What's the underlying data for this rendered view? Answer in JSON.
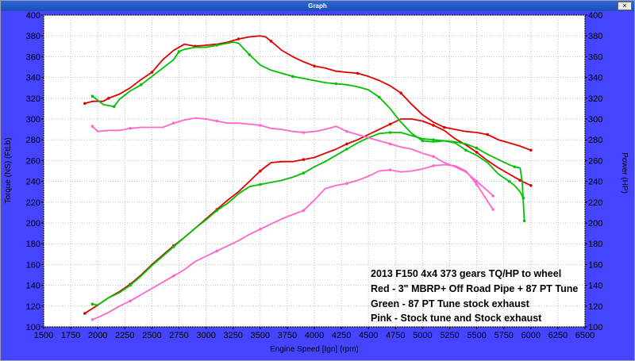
{
  "window": {
    "title": "Graph",
    "close_label": "×"
  },
  "chart_data": {
    "type": "line",
    "xlabel": "Engine Speed [Ign] (rpm)",
    "ylabel_left": "Torque (NS) (FtLb)",
    "ylabel_right": "Power (HP)",
    "xlim": [
      1500,
      6500
    ],
    "ylim": [
      100,
      400
    ],
    "x_ticks": [
      1500,
      1750,
      2000,
      2250,
      2500,
      2750,
      3000,
      3250,
      3500,
      3750,
      4000,
      4250,
      4500,
      4750,
      5000,
      5250,
      5500,
      5750,
      6000,
      6250,
      6500
    ],
    "y_ticks": [
      100,
      120,
      140,
      160,
      180,
      200,
      220,
      240,
      260,
      280,
      300,
      320,
      340,
      360,
      380,
      400
    ],
    "grid": true,
    "annotation": [
      "2013 F150 4x4 373 gears  TQ/HP to wheel",
      "Red - 3\" MBRP+ Off Road Pipe + 87 PT Tune",
      "Green - 87 PT Tune stock exhaust",
      "Pink - Stock tune and Stock exhaust"
    ],
    "series": [
      {
        "color": "#e00000",
        "kind": "torque",
        "x": [
          1880,
          1950,
          2000,
          2050,
          2100,
          2200,
          2300,
          2400,
          2500,
          2600,
          2700,
          2800,
          2900,
          3000,
          3100,
          3200,
          3300,
          3400,
          3500,
          3550,
          3600,
          3700,
          3800,
          3900,
          4000,
          4100,
          4200,
          4300,
          4400,
          4500,
          4600,
          4700,
          4800,
          4900,
          5000,
          5100,
          5200,
          5300,
          5400,
          5500,
          5600,
          5700,
          5800,
          5900,
          6000
        ],
        "y": [
          315,
          317,
          317,
          317,
          320,
          324,
          330,
          338,
          345,
          357,
          366,
          372,
          370,
          371,
          372,
          374,
          377,
          379,
          380,
          379,
          375,
          366,
          360,
          355,
          351,
          349,
          346,
          345,
          344,
          341,
          337,
          332,
          325,
          314,
          304,
          297,
          292,
          290,
          288,
          287,
          285,
          280,
          277,
          274,
          270
        ]
      },
      {
        "color": "#e00000",
        "kind": "power",
        "x": [
          1880,
          2000,
          2100,
          2200,
          2300,
          2400,
          2500,
          2600,
          2700,
          2800,
          2900,
          3000,
          3100,
          3200,
          3300,
          3400,
          3500,
          3600,
          3700,
          3800,
          3900,
          4000,
          4100,
          4200,
          4300,
          4400,
          4500,
          4600,
          4700,
          4800,
          4900,
          5000,
          5100,
          5200,
          5300,
          5400,
          5500,
          5600,
          5700,
          5800,
          5900,
          6000
        ],
        "y": [
          113,
          121,
          128,
          134,
          141,
          150,
          160,
          169,
          178,
          186,
          195,
          204,
          213,
          222,
          230,
          240,
          250,
          258,
          259,
          259,
          261,
          263,
          267,
          271,
          276,
          280,
          285,
          290,
          295,
          300,
          300,
          298,
          294,
          289,
          281,
          275,
          268,
          260,
          253,
          247,
          241,
          236
        ]
      },
      {
        "color": "#00c000",
        "kind": "torque",
        "x": [
          1950,
          2000,
          2050,
          2100,
          2150,
          2200,
          2250,
          2300,
          2400,
          2500,
          2600,
          2700,
          2750,
          2800,
          2900,
          3000,
          3100,
          3200,
          3250,
          3300,
          3400,
          3500,
          3600,
          3700,
          3800,
          3900,
          4000,
          4100,
          4200,
          4300,
          4400,
          4500,
          4600,
          4700,
          4800,
          4900,
          5000,
          5100,
          5200,
          5300,
          5400,
          5500,
          5600,
          5700,
          5800,
          5850,
          5900,
          5930
        ],
        "y": [
          322,
          318,
          314,
          313,
          312,
          319,
          323,
          327,
          333,
          341,
          349,
          357,
          365,
          367,
          369,
          369,
          371,
          373,
          374,
          373,
          362,
          352,
          347,
          344,
          341,
          339,
          337,
          335,
          334,
          333,
          331,
          328,
          321,
          310,
          297,
          286,
          279,
          278,
          279,
          277,
          270,
          265,
          258,
          247,
          240,
          236,
          230,
          224
        ]
      },
      {
        "color": "#00c000",
        "kind": "power",
        "x": [
          1950,
          2000,
          2100,
          2200,
          2300,
          2400,
          2500,
          2600,
          2700,
          2800,
          2900,
          3000,
          3100,
          3200,
          3300,
          3400,
          3500,
          3600,
          3700,
          3800,
          3900,
          4000,
          4100,
          4200,
          4300,
          4400,
          4500,
          4600,
          4700,
          4800,
          4900,
          5000,
          5100,
          5200,
          5300,
          5400,
          5500,
          5600,
          5700,
          5800,
          5850,
          5900,
          5920,
          5940
        ],
        "y": [
          122,
          121,
          128,
          133,
          140,
          149,
          159,
          168,
          177,
          186,
          195,
          203,
          212,
          219,
          228,
          235,
          237,
          239,
          241,
          244,
          248,
          254,
          259,
          265,
          271,
          277,
          282,
          286,
          287,
          287,
          284,
          281,
          280,
          279,
          278,
          276,
          272,
          266,
          261,
          256,
          254,
          253,
          240,
          202
        ]
      },
      {
        "color": "#ff66cc",
        "kind": "torque",
        "x": [
          1950,
          2000,
          2100,
          2200,
          2300,
          2400,
          2500,
          2600,
          2700,
          2800,
          2900,
          3000,
          3100,
          3200,
          3300,
          3400,
          3500,
          3600,
          3700,
          3800,
          3900,
          4000,
          4100,
          4200,
          4300,
          4400,
          4500,
          4600,
          4700,
          4800,
          4900,
          5000,
          5100,
          5200,
          5300,
          5400,
          5500,
          5600,
          5650
        ],
        "y": [
          293,
          288,
          289,
          289,
          291,
          292,
          292,
          292,
          296,
          299,
          301,
          300,
          298,
          296,
          296,
          295,
          294,
          291,
          290,
          288,
          287,
          288,
          290,
          293,
          288,
          285,
          282,
          279,
          276,
          273,
          271,
          267,
          264,
          258,
          254,
          249,
          240,
          231,
          226
        ]
      },
      {
        "color": "#ff66cc",
        "kind": "power",
        "x": [
          1950,
          2000,
          2100,
          2200,
          2300,
          2400,
          2500,
          2600,
          2700,
          2800,
          2900,
          3000,
          3100,
          3200,
          3300,
          3400,
          3500,
          3600,
          3700,
          3800,
          3900,
          4000,
          4100,
          4200,
          4300,
          4400,
          4500,
          4600,
          4700,
          4800,
          4900,
          5000,
          5100,
          5200,
          5300,
          5400,
          5500,
          5600,
          5650
        ],
        "y": [
          107,
          109,
          114,
          120,
          125,
          131,
          137,
          143,
          149,
          155,
          163,
          168,
          173,
          178,
          183,
          189,
          194,
          199,
          204,
          208,
          212,
          222,
          233,
          236,
          238,
          241,
          245,
          250,
          251,
          249,
          250,
          252,
          255,
          256,
          255,
          250,
          237,
          221,
          213
        ]
      }
    ]
  }
}
